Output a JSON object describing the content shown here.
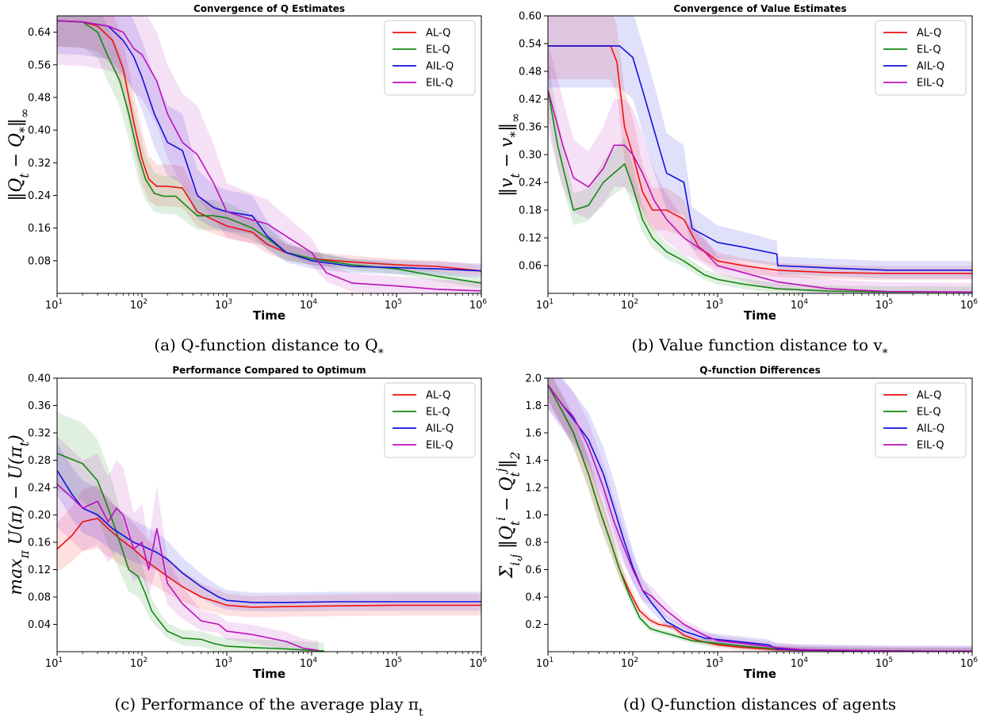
{
  "colors": {
    "AL-Q": "#ee1111",
    "EL-Q": "#118811",
    "AIL-Q": "#1111dd",
    "EIL-Q": "#bb11bb"
  },
  "chart_data": [
    {
      "id": "a",
      "type": "line",
      "title": "Convergence of Q Estimates",
      "xlabel": "Time",
      "ylabel": "‖Q_t − Q_*‖_∞",
      "caption": "(a) Q-function distance to Q_*",
      "xscale": "log",
      "xlim": [
        10,
        1000000
      ],
      "ylim": [
        0.0,
        0.68
      ],
      "x_ticks": [
        10,
        100,
        1000,
        10000,
        100000,
        1000000
      ],
      "x_tick_labels": [
        "10",
        "10",
        "10",
        "10",
        "10",
        "10"
      ],
      "x_tick_exponents": [
        "1",
        "2",
        "3",
        "4",
        "5",
        "6"
      ],
      "y_ticks": [
        0.08,
        0.16,
        0.24,
        0.32,
        0.4,
        0.48,
        0.56,
        0.64
      ],
      "y_tick_labels": [
        "0.08",
        "0.16",
        "0.24",
        "0.32",
        "0.40",
        "0.48",
        "0.56",
        "0.64"
      ],
      "legend": {
        "position": "top-right",
        "entries": [
          "AL-Q",
          "EL-Q",
          "AIL-Q",
          "EIL-Q"
        ]
      },
      "series": [
        {
          "name": "AL-Q",
          "band": 0.07,
          "x": [
            10,
            20,
            30,
            45,
            60,
            80,
            100,
            120,
            150,
            200,
            300,
            450,
            700,
            1000,
            2000,
            3000,
            5000,
            10000,
            30000,
            100000,
            300000,
            1000000
          ],
          "y": [
            0.668,
            0.665,
            0.655,
            0.62,
            0.55,
            0.42,
            0.33,
            0.28,
            0.262,
            0.262,
            0.258,
            0.2,
            0.18,
            0.165,
            0.15,
            0.12,
            0.1,
            0.085,
            0.077,
            0.07,
            0.066,
            0.055
          ]
        },
        {
          "name": "EL-Q",
          "band": 0.07,
          "x": [
            10,
            20,
            30,
            40,
            55,
            70,
            90,
            110,
            140,
            180,
            250,
            450,
            700,
            1000,
            2000,
            3000,
            5000,
            10000,
            30000,
            100000,
            300000,
            1000000
          ],
          "y": [
            0.668,
            0.665,
            0.64,
            0.58,
            0.52,
            0.44,
            0.34,
            0.28,
            0.245,
            0.238,
            0.238,
            0.19,
            0.19,
            0.185,
            0.16,
            0.135,
            0.1,
            0.085,
            0.07,
            0.06,
            0.042,
            0.025
          ]
        },
        {
          "name": "AIL-Q",
          "band": 0.09,
          "x": [
            10,
            20,
            40,
            60,
            80,
            100,
            140,
            200,
            300,
            450,
            700,
            1000,
            2000,
            3000,
            5000,
            10000,
            30000,
            100000,
            300000,
            1000000
          ],
          "y": [
            0.668,
            0.665,
            0.655,
            0.62,
            0.58,
            0.53,
            0.44,
            0.37,
            0.35,
            0.24,
            0.21,
            0.2,
            0.19,
            0.14,
            0.1,
            0.08,
            0.066,
            0.063,
            0.06,
            0.055
          ]
        },
        {
          "name": "EIL-Q",
          "band": 0.12,
          "x": [
            10,
            20,
            40,
            60,
            80,
            100,
            150,
            200,
            300,
            450,
            700,
            1000,
            2000,
            3000,
            5000,
            10000,
            15000,
            30000,
            100000,
            300000,
            1000000
          ],
          "y": [
            0.668,
            0.665,
            0.655,
            0.64,
            0.6,
            0.585,
            0.52,
            0.44,
            0.37,
            0.34,
            0.27,
            0.2,
            0.18,
            0.17,
            0.14,
            0.1,
            0.05,
            0.025,
            0.018,
            0.01,
            0.006
          ]
        }
      ]
    },
    {
      "id": "b",
      "type": "line",
      "title": "Convergence of Value Estimates",
      "xlabel": "Time",
      "ylabel": "‖v_t − v_*‖_∞",
      "caption": "(b) Value function distance to v_*",
      "xscale": "log",
      "xlim": [
        10,
        1000000
      ],
      "ylim": [
        0.0,
        0.6
      ],
      "x_ticks": [
        10,
        100,
        1000,
        10000,
        100000,
        1000000
      ],
      "x_tick_labels": [
        "10",
        "10",
        "10",
        "10",
        "10",
        "10"
      ],
      "x_tick_exponents": [
        "1",
        "2",
        "3",
        "4",
        "5",
        "6"
      ],
      "y_ticks": [
        0.06,
        0.12,
        0.18,
        0.24,
        0.3,
        0.36,
        0.42,
        0.48,
        0.54,
        0.6
      ],
      "y_tick_labels": [
        "0.06",
        "0.12",
        "0.18",
        "0.24",
        "0.30",
        "0.36",
        "0.42",
        "0.48",
        "0.54",
        "0.60"
      ],
      "legend": {
        "position": "top-right",
        "entries": [
          "AL-Q",
          "EL-Q",
          "AIL-Q",
          "EIL-Q"
        ]
      },
      "series": [
        {
          "name": "AL-Q",
          "band": 0.08,
          "x": [
            10,
            20,
            30,
            45,
            55,
            65,
            80,
            100,
            130,
            170,
            250,
            400,
            600,
            1000,
            2000,
            5000,
            20000,
            100000,
            1000000
          ],
          "y": [
            0.535,
            0.535,
            0.535,
            0.535,
            0.535,
            0.5,
            0.36,
            0.3,
            0.22,
            0.18,
            0.18,
            0.16,
            0.1,
            0.07,
            0.06,
            0.05,
            0.045,
            0.043,
            0.043
          ]
        },
        {
          "name": "EL-Q",
          "band": 0.06,
          "x": [
            10,
            13,
            20,
            30,
            45,
            60,
            70,
            80,
            100,
            130,
            170,
            250,
            400,
            700,
            1000,
            2000,
            5000,
            20000,
            100000,
            1000000
          ],
          "y": [
            0.44,
            0.32,
            0.18,
            0.19,
            0.24,
            0.26,
            0.27,
            0.28,
            0.23,
            0.16,
            0.12,
            0.09,
            0.07,
            0.04,
            0.03,
            0.02,
            0.01,
            0.005,
            0.003,
            0.003
          ]
        },
        {
          "name": "AIL-Q",
          "band": 0.1,
          "x": [
            10,
            20,
            40,
            70,
            100,
            130,
            180,
            250,
            400,
            500,
            1000,
            2000,
            5000,
            5100,
            20000,
            100000,
            1000000
          ],
          "y": [
            0.535,
            0.535,
            0.535,
            0.535,
            0.51,
            0.44,
            0.35,
            0.26,
            0.24,
            0.14,
            0.11,
            0.1,
            0.085,
            0.06,
            0.055,
            0.05,
            0.05
          ]
        },
        {
          "name": "EIL-Q",
          "band": 0.1,
          "x": [
            10,
            15,
            20,
            30,
            45,
            60,
            80,
            100,
            130,
            180,
            250,
            400,
            700,
            1000,
            2000,
            5000,
            20000,
            100000,
            1000000
          ],
          "y": [
            0.44,
            0.32,
            0.25,
            0.23,
            0.27,
            0.32,
            0.32,
            0.3,
            0.26,
            0.2,
            0.16,
            0.12,
            0.09,
            0.06,
            0.045,
            0.025,
            0.01,
            0.004,
            0.003
          ]
        }
      ]
    },
    {
      "id": "c",
      "type": "line",
      "title": "Performance Compared to Optimum",
      "xlabel": "Time",
      "ylabel": "max_π U(π) − U(π_t)",
      "caption": "(c) Performance of the average play π_t",
      "xscale": "log",
      "xlim": [
        10,
        1000000
      ],
      "ylim": [
        0.0,
        0.4
      ],
      "x_ticks": [
        10,
        100,
        1000,
        10000,
        100000,
        1000000
      ],
      "x_tick_labels": [
        "10",
        "10",
        "10",
        "10",
        "10",
        "10"
      ],
      "x_tick_exponents": [
        "1",
        "2",
        "3",
        "4",
        "5",
        "6"
      ],
      "y_ticks": [
        0.04,
        0.08,
        0.12,
        0.16,
        0.2,
        0.24,
        0.28,
        0.32,
        0.36,
        0.4
      ],
      "y_tick_labels": [
        "0.04",
        "0.08",
        "0.12",
        "0.16",
        "0.20",
        "0.24",
        "0.28",
        "0.32",
        "0.36",
        "0.40"
      ],
      "legend": {
        "position": "top-right",
        "entries": [
          "AL-Q",
          "EL-Q",
          "AIL-Q",
          "EIL-Q"
        ]
      },
      "series": [
        {
          "name": "AL-Q",
          "band": 0.05,
          "x": [
            10,
            15,
            20,
            30,
            40,
            55,
            80,
            120,
            200,
            300,
            500,
            800,
            1000,
            2000,
            5000,
            20000,
            100000,
            1000000
          ],
          "y": [
            0.15,
            0.17,
            0.19,
            0.195,
            0.18,
            0.165,
            0.15,
            0.13,
            0.11,
            0.095,
            0.08,
            0.072,
            0.068,
            0.065,
            0.066,
            0.067,
            0.068,
            0.068
          ]
        },
        {
          "name": "EL-Q",
          "band": 0.06,
          "x": [
            10,
            20,
            30,
            40,
            55,
            70,
            90,
            110,
            130,
            160,
            200,
            300,
            500,
            700,
            1000,
            2000,
            5000,
            10000,
            14000
          ],
          "y": [
            0.29,
            0.275,
            0.25,
            0.21,
            0.16,
            0.12,
            0.11,
            0.085,
            0.06,
            0.045,
            0.03,
            0.02,
            0.018,
            0.012,
            0.008,
            0.006,
            0.004,
            0.002,
            0.001
          ]
        },
        {
          "name": "AIL-Q",
          "band": 0.04,
          "x": [
            10,
            15,
            20,
            30,
            45,
            60,
            80,
            100,
            150,
            200,
            300,
            500,
            800,
            1000,
            2000,
            5000,
            20000,
            100000,
            1000000
          ],
          "y": [
            0.265,
            0.23,
            0.21,
            0.2,
            0.18,
            0.17,
            0.16,
            0.155,
            0.145,
            0.135,
            0.115,
            0.095,
            0.08,
            0.075,
            0.072,
            0.072,
            0.073,
            0.073,
            0.073
          ]
        },
        {
          "name": "EIL-Q",
          "band": 0.07,
          "x": [
            10,
            15,
            20,
            30,
            40,
            50,
            60,
            80,
            100,
            120,
            150,
            200,
            300,
            500,
            800,
            1000,
            2000,
            5000,
            8000,
            12000
          ],
          "y": [
            0.245,
            0.225,
            0.21,
            0.22,
            0.19,
            0.21,
            0.2,
            0.15,
            0.16,
            0.12,
            0.18,
            0.1,
            0.07,
            0.045,
            0.04,
            0.03,
            0.025,
            0.015,
            0.005,
            0.002
          ]
        }
      ]
    },
    {
      "id": "d",
      "type": "line",
      "title": "Q-function Differences",
      "xlabel": "Time",
      "ylabel": "Σ_{i,j} ‖Q_t^i − Q_t^j‖_2",
      "caption": "(d) Q-function distances of agents",
      "xscale": "log",
      "xlim": [
        10,
        1000000
      ],
      "ylim": [
        0.0,
        2.0
      ],
      "x_ticks": [
        10,
        100,
        1000,
        10000,
        100000,
        1000000
      ],
      "x_tick_labels": [
        "10",
        "10",
        "10",
        "10",
        "10",
        "10"
      ],
      "x_tick_exponents": [
        "1",
        "2",
        "3",
        "4",
        "5",
        "6"
      ],
      "y_ticks": [
        0.2,
        0.4,
        0.6,
        0.8,
        1.0,
        1.2,
        1.4,
        1.6,
        1.8,
        2.0
      ],
      "y_tick_labels": [
        "0.2",
        "0.4",
        "0.6",
        "0.8",
        "1.0",
        "1.2",
        "1.4",
        "1.6",
        "1.8",
        "2.0"
      ],
      "legend": {
        "position": "top-right",
        "entries": [
          "AL-Q",
          "EL-Q",
          "AIL-Q",
          "EIL-Q"
        ]
      },
      "series": [
        {
          "name": "AL-Q",
          "band": 0.12,
          "x": [
            10,
            15,
            20,
            30,
            40,
            55,
            70,
            90,
            120,
            160,
            200,
            300,
            400,
            600,
            1000,
            2000,
            5000,
            10000,
            100000,
            1000000
          ],
          "y": [
            1.95,
            1.75,
            1.6,
            1.3,
            1.05,
            0.8,
            0.6,
            0.45,
            0.3,
            0.23,
            0.2,
            0.18,
            0.12,
            0.08,
            0.05,
            0.03,
            0.015,
            0.01,
            0.005,
            0.003
          ]
        },
        {
          "name": "EL-Q",
          "band": 0.12,
          "x": [
            10,
            15,
            20,
            30,
            40,
            55,
            70,
            90,
            120,
            160,
            200,
            300,
            500,
            1000,
            2000,
            5000,
            15000,
            100000,
            1000000
          ],
          "y": [
            1.95,
            1.75,
            1.6,
            1.3,
            1.05,
            0.8,
            0.6,
            0.42,
            0.25,
            0.17,
            0.15,
            0.12,
            0.08,
            0.06,
            0.04,
            0.02,
            0.01,
            0.005,
            0.003
          ]
        },
        {
          "name": "AIL-Q",
          "band": 0.2,
          "x": [
            10,
            15,
            20,
            30,
            45,
            60,
            80,
            100,
            130,
            170,
            250,
            400,
            700,
            1000,
            2000,
            4000,
            5000,
            10000,
            100000,
            1000000
          ],
          "y": [
            1.95,
            1.8,
            1.7,
            1.55,
            1.3,
            1.05,
            0.8,
            0.62,
            0.45,
            0.35,
            0.22,
            0.15,
            0.1,
            0.09,
            0.07,
            0.05,
            0.02,
            0.012,
            0.005,
            0.003
          ]
        },
        {
          "name": "EIL-Q",
          "band": 0.18,
          "x": [
            10,
            15,
            20,
            30,
            45,
            60,
            80,
            100,
            130,
            170,
            250,
            400,
            700,
            1000,
            2000,
            5000,
            10000,
            100000,
            1000000
          ],
          "y": [
            1.95,
            1.8,
            1.72,
            1.5,
            1.2,
            0.95,
            0.75,
            0.6,
            0.45,
            0.4,
            0.3,
            0.2,
            0.12,
            0.08,
            0.06,
            0.03,
            0.015,
            0.005,
            0.003
          ]
        }
      ]
    }
  ]
}
